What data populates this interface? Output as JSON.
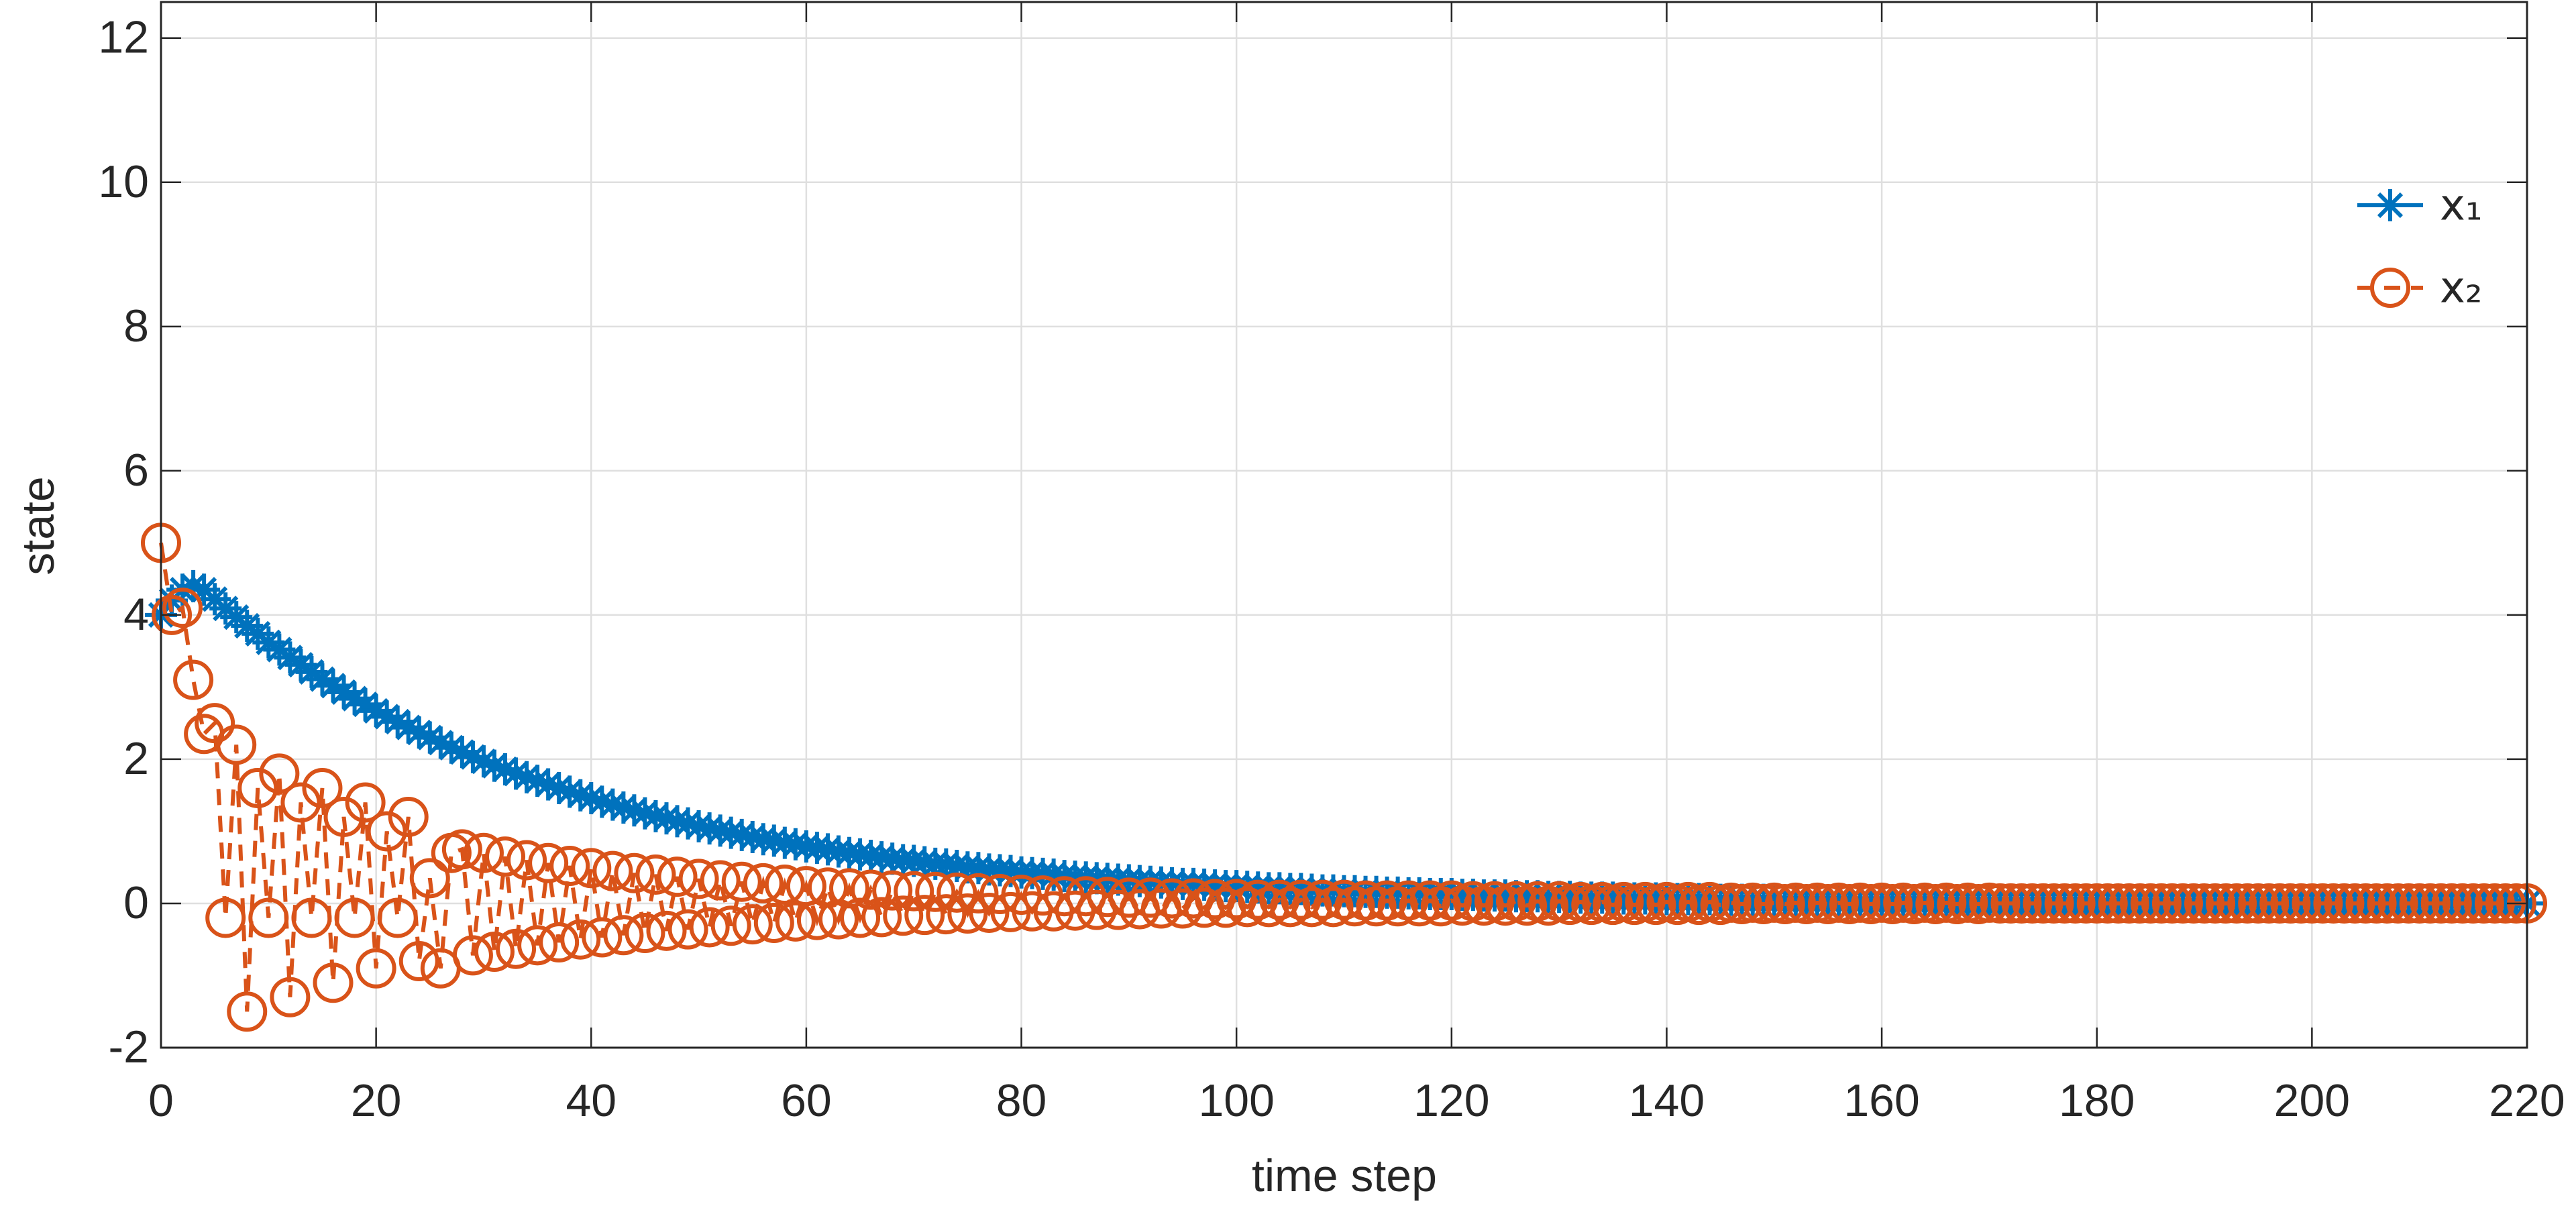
{
  "chart_data": {
    "type": "line",
    "xlabel": "time step",
    "ylabel": "state",
    "xlim": [
      0,
      220
    ],
    "ylim": [
      -2,
      12.5
    ],
    "xticks": [
      0,
      20,
      40,
      60,
      80,
      100,
      120,
      140,
      160,
      180,
      200,
      220
    ],
    "yticks": [
      -2,
      0,
      2,
      4,
      6,
      8,
      10,
      12
    ],
    "grid": true,
    "legend": "upper right",
    "x": [
      0,
      1,
      2,
      3,
      4,
      5,
      6,
      7,
      8,
      9,
      10,
      11,
      12,
      13,
      14,
      15,
      16,
      17,
      18,
      19,
      20,
      21,
      22,
      23,
      24,
      25,
      26,
      27,
      28,
      29,
      30,
      31,
      32,
      33,
      34,
      35,
      36,
      37,
      38,
      39,
      40,
      41,
      42,
      43,
      44,
      45,
      46,
      47,
      48,
      49,
      50,
      51,
      52,
      53,
      54,
      55,
      56,
      57,
      58,
      59,
      60,
      61,
      62,
      63,
      64,
      65,
      66,
      67,
      68,
      69,
      70,
      71,
      72,
      73,
      74,
      75,
      76,
      77,
      78,
      79,
      80,
      81,
      82,
      83,
      84,
      85,
      86,
      87,
      88,
      89,
      90,
      91,
      92,
      93,
      94,
      95,
      96,
      97,
      98,
      99,
      100,
      101,
      102,
      103,
      104,
      105,
      106,
      107,
      108,
      109,
      110,
      111,
      112,
      113,
      114,
      115,
      116,
      117,
      118,
      119,
      120,
      121,
      122,
      123,
      124,
      125,
      126,
      127,
      128,
      129,
      130,
      131,
      132,
      133,
      134,
      135,
      136,
      137,
      138,
      139,
      140,
      141,
      142,
      143,
      144,
      145,
      146,
      147,
      148,
      149,
      150,
      151,
      152,
      153,
      154,
      155,
      156,
      157,
      158,
      159,
      160,
      161,
      162,
      163,
      164,
      165,
      166,
      167,
      168,
      169,
      170,
      171,
      172,
      173,
      174,
      175,
      176,
      177,
      178,
      179,
      180,
      181,
      182,
      183,
      184,
      185,
      186,
      187,
      188,
      189,
      190,
      191,
      192,
      193,
      194,
      195,
      196,
      197,
      198,
      199,
      200,
      201,
      202,
      203,
      204,
      205,
      206,
      207,
      208,
      209,
      210,
      211,
      212,
      213,
      214,
      215,
      216,
      217,
      218,
      219,
      220
    ],
    "series": [
      {
        "name": "x₁",
        "color": "#0072BD",
        "marker": "asterisk",
        "dash": "solid",
        "values": [
          4.0,
          4.2,
          4.35,
          4.4,
          4.35,
          4.22,
          4.09,
          3.97,
          3.85,
          3.74,
          3.62,
          3.52,
          3.41,
          3.31,
          3.21,
          3.11,
          3.02,
          2.93,
          2.84,
          2.76,
          2.67,
          2.59,
          2.52,
          2.44,
          2.37,
          2.3,
          2.23,
          2.16,
          2.1,
          2.03,
          1.97,
          1.91,
          1.86,
          1.8,
          1.75,
          1.7,
          1.65,
          1.6,
          1.55,
          1.5,
          1.46,
          1.41,
          1.37,
          1.33,
          1.29,
          1.25,
          1.21,
          1.18,
          1.14,
          1.11,
          1.07,
          1.04,
          1.01,
          0.98,
          0.95,
          0.92,
          0.89,
          0.87,
          0.84,
          0.82,
          0.79,
          0.77,
          0.75,
          0.72,
          0.7,
          0.68,
          0.66,
          0.64,
          0.62,
          0.6,
          0.59,
          0.57,
          0.55,
          0.54,
          0.52,
          0.5,
          0.49,
          0.47,
          0.46,
          0.45,
          0.43,
          0.42,
          0.41,
          0.4,
          0.38,
          0.37,
          0.36,
          0.35,
          0.34,
          0.33,
          0.32,
          0.31,
          0.3,
          0.29,
          0.28,
          0.27,
          0.27,
          0.26,
          0.25,
          0.24,
          0.24,
          0.23,
          0.22,
          0.21,
          0.21,
          0.2,
          0.2,
          0.19,
          0.18,
          0.18,
          0.17,
          0.17,
          0.16,
          0.16,
          0.15,
          0.15,
          0.14,
          0.14,
          0.13,
          0.13,
          0.13,
          0.12,
          0.12,
          0.11,
          0.11,
          0.11,
          0.1,
          0.1,
          0.1,
          0.09,
          0.09,
          0.09,
          0.08,
          0.08,
          0.08,
          0.08,
          0.07,
          0.07,
          0.07,
          0.07,
          0.06,
          0.06,
          0.06,
          0.06,
          0.06,
          0.05,
          0.05,
          0.05,
          0.05,
          0.05,
          0.05,
          0.04,
          0.04,
          0.04,
          0.04,
          0.04,
          0.04,
          0.04,
          0.03,
          0.03,
          0.03,
          0.03,
          0.03,
          0.03,
          0.03,
          0.03,
          0.02,
          0.02,
          0.02,
          0.02,
          0.02,
          0.02,
          0.02,
          0.02,
          0.02,
          0.02,
          0.02,
          0.02,
          0.02,
          0.02,
          0.02,
          0.01,
          0.01,
          0.01,
          0.01,
          0.01,
          0.01,
          0.01,
          0.01,
          0.01,
          0.01,
          0.01,
          0.01,
          0.01,
          0.01,
          0.01,
          0.01,
          0.01,
          0.01,
          0.01,
          0.01,
          0.01,
          0.01,
          0.01,
          0.01,
          0.01,
          0,
          0,
          0,
          0,
          0,
          0,
          0,
          0,
          0,
          0,
          0,
          0,
          0,
          0,
          0
        ]
      },
      {
        "name": "x₂",
        "color": "#D95319",
        "marker": "circle",
        "dash": "dashed",
        "values": [
          5.0,
          4.0,
          4.1,
          3.1,
          2.35,
          2.5,
          -0.2,
          2.2,
          -1.5,
          1.6,
          -0.2,
          1.8,
          -1.3,
          1.4,
          -0.2,
          1.6,
          -1.1,
          1.2,
          -0.2,
          1.4,
          -0.9,
          1.0,
          -0.2,
          1.2,
          -0.8,
          0.35,
          -0.9,
          0.7,
          0.75,
          -0.72,
          0.7,
          -0.67,
          0.65,
          -0.63,
          0.6,
          -0.58,
          0.56,
          -0.54,
          0.52,
          -0.5,
          0.49,
          -0.47,
          0.45,
          -0.44,
          0.42,
          -0.41,
          0.4,
          -0.38,
          0.37,
          -0.36,
          0.34,
          -0.33,
          0.32,
          -0.31,
          0.3,
          -0.29,
          0.28,
          -0.27,
          0.26,
          -0.25,
          0.24,
          -0.23,
          0.22,
          -0.22,
          0.21,
          -0.2,
          0.19,
          -0.19,
          0.18,
          -0.17,
          0.17,
          -0.16,
          0.16,
          -0.15,
          0.15,
          -0.14,
          0.14,
          -0.13,
          0.13,
          -0.12,
          0.12,
          -0.11,
          0.11,
          -0.11,
          0.1,
          -0.1,
          0.1,
          -0.09,
          0.09,
          -0.09,
          0.08,
          -0.08,
          0.08,
          -0.07,
          0.07,
          -0.07,
          0.07,
          -0.06,
          0.06,
          -0.06,
          0.06,
          -0.05,
          0.05,
          -0.05,
          0.05,
          -0.05,
          0.05,
          -0.05,
          0.05,
          -0.05,
          0.05,
          -0.04,
          0.04,
          -0.04,
          0.04,
          -0.04,
          0.04,
          -0.04,
          0.04,
          -0.04,
          0.04,
          -0.03,
          0.03,
          -0.03,
          0.03,
          -0.03,
          0.03,
          -0.03,
          0.03,
          -0.03,
          0.03,
          -0.02,
          0.02,
          -0.02,
          0.02,
          -0.02,
          0.02,
          -0.02,
          0.02,
          -0.02,
          0.02,
          -0.02,
          0.02,
          -0.02,
          0.02,
          -0.02,
          0.01,
          -0.01,
          0.01,
          -0.01,
          0.01,
          -0.01,
          0.01,
          -0.01,
          0.01,
          -0.01,
          0.01,
          -0.01,
          0.01,
          -0.01,
          0.01,
          -0.01,
          0.01,
          -0.01,
          0.01,
          -0.01,
          0.01,
          -0.01,
          0.01,
          -0.01,
          0.01,
          0,
          0,
          0,
          0,
          0,
          0,
          0,
          0,
          0,
          0,
          0,
          0,
          0,
          0,
          0,
          0,
          0,
          0,
          0,
          0,
          0,
          0,
          0,
          0,
          0,
          0,
          0,
          0,
          0,
          0,
          0,
          0,
          0,
          0,
          0,
          0,
          0,
          0,
          0,
          0,
          0,
          0,
          0,
          0,
          0,
          0,
          0,
          0,
          0,
          0
        ]
      }
    ]
  }
}
